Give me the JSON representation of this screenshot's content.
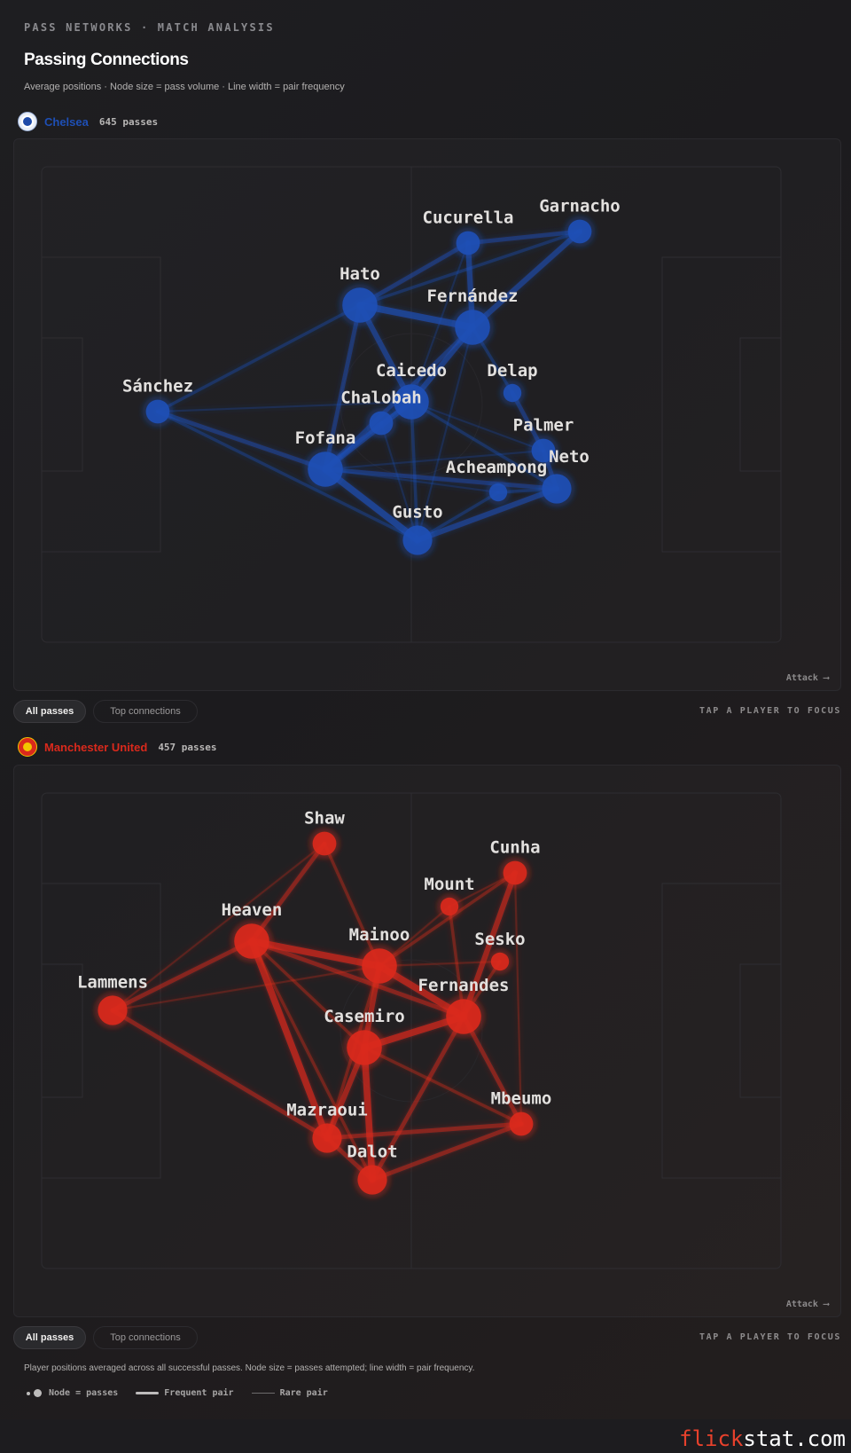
{
  "header": {
    "eyebrow": "PASS NETWORKS · MATCH ANALYSIS",
    "title": "Passing Connections",
    "subtitle": "Average positions · Node size = pass volume · Line width = pair frequency"
  },
  "teams": [
    {
      "name": "Chelsea",
      "passes_label": "645 passes",
      "color": "#1e4fb5",
      "crest_icon": "chelsea-crest-icon",
      "attack_label": "Attack ⟶",
      "players": [
        {
          "id": "cucurella",
          "name": "Cucurella",
          "volume": 2
        },
        {
          "id": "garnacho",
          "name": "Garnacho",
          "volume": 2
        },
        {
          "id": "hato",
          "name": "Hato",
          "volume": 4
        },
        {
          "id": "fernandez",
          "name": "Fernández",
          "volume": 4
        },
        {
          "id": "caicedo",
          "name": "Caicedo",
          "volume": 4
        },
        {
          "id": "delap",
          "name": "Delap",
          "volume": 1
        },
        {
          "id": "chalobah",
          "name": "Chalobah",
          "volume": 2
        },
        {
          "id": "sanchez",
          "name": "Sánchez",
          "volume": 2
        },
        {
          "id": "palmer",
          "name": "Palmer",
          "volume": 2
        },
        {
          "id": "fofana",
          "name": "Fofana",
          "volume": 4
        },
        {
          "id": "acheampong",
          "name": "Acheampong",
          "volume": 1
        },
        {
          "id": "neto",
          "name": "Neto",
          "volume": 3
        },
        {
          "id": "gusto",
          "name": "Gusto",
          "volume": 3
        }
      ],
      "links": [
        [
          "cucurella",
          "garnacho",
          3
        ],
        [
          "cucurella",
          "hato",
          3
        ],
        [
          "garnacho",
          "hato",
          2
        ],
        [
          "garnacho",
          "fernandez",
          4
        ],
        [
          "cucurella",
          "fernandez",
          4
        ],
        [
          "cucurella",
          "caicedo",
          1
        ],
        [
          "hato",
          "fernandez",
          5
        ],
        [
          "hato",
          "caicedo",
          4
        ],
        [
          "hato",
          "sanchez",
          2
        ],
        [
          "hato",
          "fofana",
          3
        ],
        [
          "fernandez",
          "caicedo",
          4
        ],
        [
          "fernandez",
          "fofana",
          3
        ],
        [
          "fernandez",
          "delap",
          2
        ],
        [
          "delap",
          "palmer",
          3
        ],
        [
          "palmer",
          "neto",
          3
        ],
        [
          "caicedo",
          "chalobah",
          2
        ],
        [
          "chalobah",
          "fofana",
          3
        ],
        [
          "caicedo",
          "fofana",
          4
        ],
        [
          "caicedo",
          "gusto",
          2
        ],
        [
          "caicedo",
          "palmer",
          1
        ],
        [
          "caicedo",
          "neto",
          2
        ],
        [
          "sanchez",
          "fofana",
          3
        ],
        [
          "sanchez",
          "caicedo",
          1
        ],
        [
          "sanchez",
          "gusto",
          2
        ],
        [
          "fofana",
          "gusto",
          5
        ],
        [
          "fofana",
          "neto",
          3
        ],
        [
          "fofana",
          "acheampong",
          1
        ],
        [
          "fofana",
          "palmer",
          1
        ],
        [
          "gusto",
          "neto",
          4
        ],
        [
          "gusto",
          "acheampong",
          2
        ],
        [
          "acheampong",
          "neto",
          2
        ],
        [
          "chalobah",
          "gusto",
          1
        ],
        [
          "fernandez",
          "gusto",
          1
        ]
      ]
    },
    {
      "name": "Manchester United",
      "passes_label": "457 passes",
      "color": "#da291c",
      "crest_icon": "manutd-crest-icon",
      "attack_label": "Attack ⟶",
      "players": [
        {
          "id": "shaw",
          "name": "Shaw",
          "volume": 2
        },
        {
          "id": "cunha",
          "name": "Cunha",
          "volume": 2
        },
        {
          "id": "mount",
          "name": "Mount",
          "volume": 1
        },
        {
          "id": "heaven",
          "name": "Heaven",
          "volume": 4
        },
        {
          "id": "mainoo",
          "name": "Mainoo",
          "volume": 4
        },
        {
          "id": "sesko",
          "name": "Sesko",
          "volume": 1
        },
        {
          "id": "lammens",
          "name": "Lammens",
          "volume": 3
        },
        {
          "id": "fernandes",
          "name": "Fernandes",
          "volume": 4
        },
        {
          "id": "casemiro",
          "name": "Casemiro",
          "volume": 4
        },
        {
          "id": "mbeumo",
          "name": "Mbeumo",
          "volume": 2
        },
        {
          "id": "mazraoui",
          "name": "Mazraoui",
          "volume": 3
        },
        {
          "id": "dalot",
          "name": "Dalot",
          "volume": 3
        }
      ],
      "links": [
        [
          "shaw",
          "heaven",
          3
        ],
        [
          "shaw",
          "mainoo",
          2
        ],
        [
          "shaw",
          "lammens",
          1
        ],
        [
          "heaven",
          "lammens",
          3
        ],
        [
          "heaven",
          "mainoo",
          5
        ],
        [
          "heaven",
          "fernandes",
          3
        ],
        [
          "heaven",
          "casemiro",
          2
        ],
        [
          "heaven",
          "mazraoui",
          5
        ],
        [
          "heaven",
          "dalot",
          2
        ],
        [
          "lammens",
          "mainoo",
          1
        ],
        [
          "lammens",
          "mazraoui",
          3
        ],
        [
          "mainoo",
          "fernandes",
          5
        ],
        [
          "mainoo",
          "casemiro",
          4
        ],
        [
          "mainoo",
          "cunha",
          2
        ],
        [
          "mainoo",
          "mazraoui",
          2
        ],
        [
          "mount",
          "fernandes",
          2
        ],
        [
          "mount",
          "cunha",
          1
        ],
        [
          "mount",
          "mainoo",
          1
        ],
        [
          "cunha",
          "fernandes",
          4
        ],
        [
          "cunha",
          "mbeumo",
          1
        ],
        [
          "sesko",
          "fernandes",
          2
        ],
        [
          "sesko",
          "mainoo",
          1
        ],
        [
          "fernandes",
          "casemiro",
          5
        ],
        [
          "fernandes",
          "mbeumo",
          3
        ],
        [
          "fernandes",
          "dalot",
          3
        ],
        [
          "casemiro",
          "mazraoui",
          4
        ],
        [
          "casemiro",
          "dalot",
          5
        ],
        [
          "casemiro",
          "mbeumo",
          2
        ],
        [
          "mazraoui",
          "mbeumo",
          3
        ],
        [
          "mazraoui",
          "dalot",
          3
        ],
        [
          "dalot",
          "mbeumo",
          3
        ]
      ]
    }
  ],
  "controls": {
    "all_passes": "All passes",
    "top_connections": "Top connections",
    "hint": "TAP A PLAYER TO FOCUS"
  },
  "footer": {
    "note": "Player positions averaged across all successful passes. Node size = passes attempted; line width = pair frequency.",
    "legend_node": "Node = passes",
    "legend_frequent": "Frequent pair",
    "legend_rare": "Rare pair"
  },
  "brand": {
    "accent": "flick",
    "rest": "stat.com"
  }
}
